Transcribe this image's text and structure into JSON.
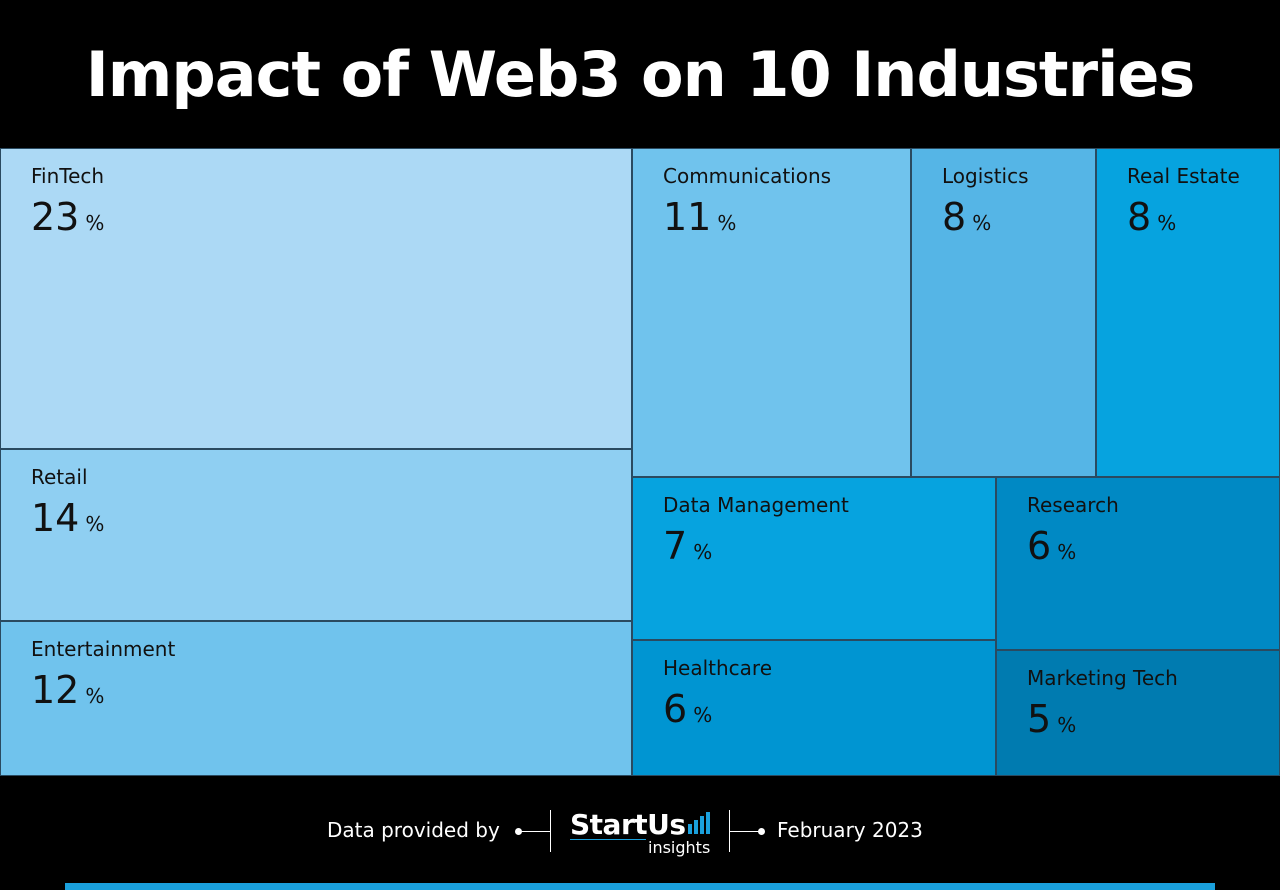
{
  "title": "Impact of Web3 on 10 Industries",
  "chart_data": {
    "type": "treemap",
    "unit": "%",
    "items": [
      {
        "name": "FinTech",
        "value": 23,
        "color": "#acd9f5"
      },
      {
        "name": "Retail",
        "value": 14,
        "color": "#8fcff2"
      },
      {
        "name": "Entertainment",
        "value": 12,
        "color": "#70c3ed"
      },
      {
        "name": "Communications",
        "value": 11,
        "color": "#70c3ed"
      },
      {
        "name": "Logistics",
        "value": 8,
        "color": "#55b5e6"
      },
      {
        "name": "Real Estate",
        "value": 8,
        "color": "#06a3df"
      },
      {
        "name": "Data Management",
        "value": 7,
        "color": "#06a3df"
      },
      {
        "name": "Research",
        "value": 6,
        "color": "#0089c4"
      },
      {
        "name": "Healthcare",
        "value": 6,
        "color": "#0095d2"
      },
      {
        "name": "Marketing Tech",
        "value": 5,
        "color": "#007bb0"
      }
    ]
  },
  "footer": {
    "data_label": "Data provided by",
    "logo_name": "StartUs",
    "logo_sub": "insights",
    "date": "February 2023",
    "accent_color": "#1aa0dc"
  }
}
